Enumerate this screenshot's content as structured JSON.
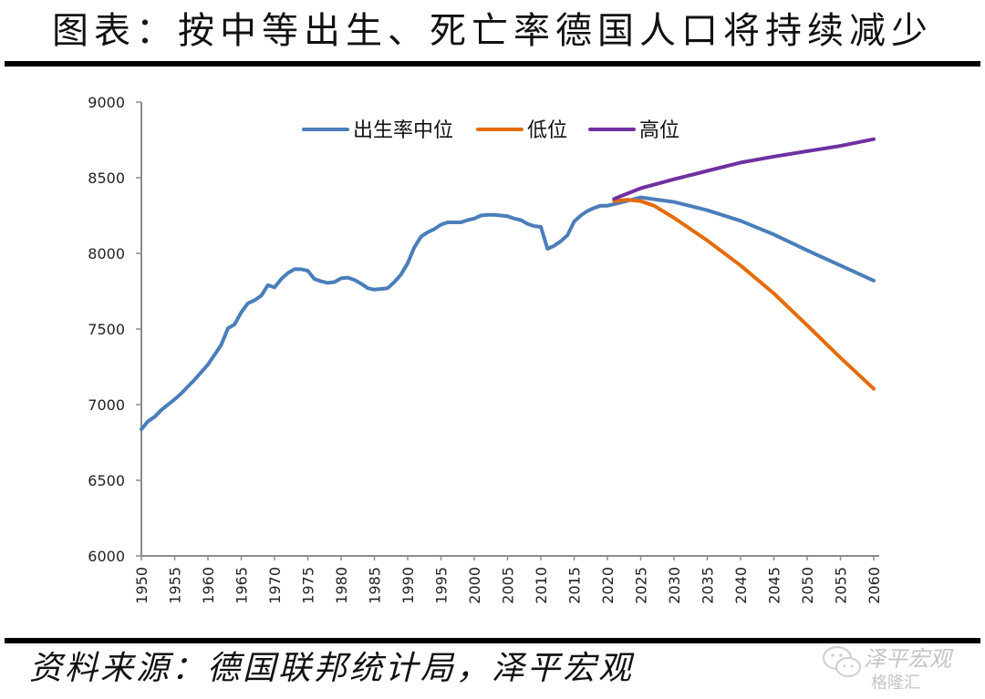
{
  "title": "图表：按中等出生、死亡率德国人口将持续减少",
  "source": "资料来源：德国联邦统计局，泽平宏观",
  "watermark": {
    "name": "泽平宏观",
    "logo_text": "格隆汇",
    "icon": "wechat-bubble-icon"
  },
  "chart_data": {
    "type": "line",
    "title": "",
    "xlabel": "",
    "ylabel": "",
    "xlim": [
      1950,
      2060
    ],
    "ylim": [
      6000,
      9000
    ],
    "grid": false,
    "legend_position": "top-center",
    "y_ticks": [
      "6000",
      "6500",
      "7000",
      "7500",
      "8000",
      "8500",
      "9000"
    ],
    "x_ticks": [
      "1950",
      "1955",
      "1960",
      "1965",
      "1970",
      "1975",
      "1980",
      "1985",
      "1990",
      "1995",
      "2000",
      "2005",
      "2010",
      "2015",
      "2020",
      "2025",
      "2030",
      "2035",
      "2040",
      "2045",
      "2050",
      "2055",
      "2060"
    ],
    "colors": {
      "medium": "#4a7ebb",
      "low": "#e46c0a",
      "high": "#7030a0",
      "axis": "#8c8c8c"
    },
    "series": [
      {
        "key": "medium",
        "name": "出生率中位",
        "x": [
          1950,
          1951,
          1952,
          1953,
          1954,
          1955,
          1956,
          1957,
          1958,
          1959,
          1960,
          1961,
          1962,
          1963,
          1964,
          1965,
          1966,
          1967,
          1968,
          1969,
          1970,
          1971,
          1972,
          1973,
          1974,
          1975,
          1976,
          1977,
          1978,
          1979,
          1980,
          1981,
          1982,
          1983,
          1984,
          1985,
          1986,
          1987,
          1988,
          1989,
          1990,
          1991,
          1992,
          1993,
          1994,
          1995,
          1996,
          1997,
          1998,
          1999,
          2000,
          2001,
          2002,
          2003,
          2004,
          2005,
          2006,
          2007,
          2008,
          2009,
          2010,
          2011,
          2012,
          2013,
          2014,
          2015,
          2016,
          2017,
          2018,
          2019,
          2020,
          2021,
          2025,
          2030,
          2035,
          2040,
          2045,
          2050,
          2055,
          2060
        ],
        "values": [
          6837,
          6890,
          6920,
          6965,
          7000,
          7035,
          7075,
          7120,
          7165,
          7215,
          7265,
          7330,
          7395,
          7505,
          7530,
          7610,
          7670,
          7690,
          7720,
          7790,
          7775,
          7830,
          7870,
          7895,
          7895,
          7885,
          7830,
          7815,
          7805,
          7810,
          7835,
          7840,
          7825,
          7800,
          7770,
          7760,
          7765,
          7770,
          7810,
          7860,
          7935,
          8040,
          8110,
          8140,
          8160,
          8190,
          8205,
          8205,
          8205,
          8220,
          8230,
          8250,
          8255,
          8255,
          8250,
          8245,
          8230,
          8220,
          8195,
          8180,
          8175,
          8030,
          8050,
          8080,
          8120,
          8210,
          8250,
          8280,
          8300,
          8315,
          8315,
          8325,
          8370,
          8340,
          8285,
          8215,
          8125,
          8020,
          7920,
          7820
        ]
      },
      {
        "key": "low",
        "name": "低位",
        "x": [
          2021,
          2023,
          2025,
          2027,
          2030,
          2035,
          2040,
          2045,
          2050,
          2055,
          2060
        ],
        "values": [
          8345,
          8355,
          8345,
          8315,
          8235,
          8085,
          7920,
          7735,
          7525,
          7310,
          7105
        ]
      },
      {
        "key": "high",
        "name": "高位",
        "x": [
          2021,
          2025,
          2030,
          2035,
          2040,
          2045,
          2050,
          2055,
          2060
        ],
        "values": [
          8360,
          8430,
          8490,
          8545,
          8600,
          8640,
          8675,
          8710,
          8755
        ]
      }
    ]
  }
}
